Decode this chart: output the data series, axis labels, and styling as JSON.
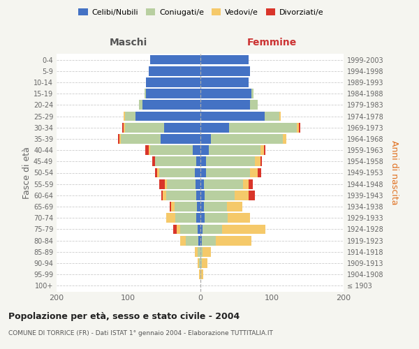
{
  "age_groups": [
    "100+",
    "95-99",
    "90-94",
    "85-89",
    "80-84",
    "75-79",
    "70-74",
    "65-69",
    "60-64",
    "55-59",
    "50-54",
    "45-49",
    "40-44",
    "35-39",
    "30-34",
    "25-29",
    "20-24",
    "15-19",
    "10-14",
    "5-9",
    "0-4"
  ],
  "birth_years": [
    "≤ 1903",
    "1904-1908",
    "1909-1913",
    "1914-1918",
    "1919-1923",
    "1924-1928",
    "1929-1933",
    "1934-1938",
    "1939-1943",
    "1944-1948",
    "1949-1953",
    "1954-1958",
    "1959-1963",
    "1964-1968",
    "1969-1973",
    "1974-1978",
    "1979-1983",
    "1984-1988",
    "1989-1993",
    "1994-1998",
    "1999-2003"
  ],
  "maschi": {
    "celibi": [
      0,
      0,
      0,
      0,
      2,
      3,
      5,
      4,
      5,
      6,
      7,
      5,
      10,
      55,
      50,
      90,
      80,
      75,
      75,
      72,
      70
    ],
    "coniugati": [
      0,
      0,
      1,
      3,
      18,
      25,
      30,
      32,
      42,
      40,
      50,
      58,
      60,
      55,
      55,
      15,
      5,
      2,
      0,
      0,
      0
    ],
    "vedovi": [
      0,
      1,
      2,
      4,
      8,
      5,
      12,
      4,
      5,
      3,
      3,
      0,
      2,
      2,
      2,
      2,
      0,
      0,
      0,
      0,
      0
    ],
    "divorziati": [
      0,
      0,
      0,
      0,
      0,
      4,
      0,
      2,
      2,
      8,
      3,
      4,
      4,
      2,
      2,
      0,
      0,
      0,
      0,
      0,
      0
    ]
  },
  "femmine": {
    "nubili": [
      0,
      0,
      0,
      0,
      2,
      3,
      6,
      5,
      6,
      5,
      8,
      8,
      12,
      15,
      40,
      90,
      70,
      72,
      68,
      70,
      68
    ],
    "coniugate": [
      0,
      1,
      2,
      3,
      20,
      28,
      32,
      32,
      42,
      55,
      62,
      68,
      72,
      100,
      95,
      20,
      10,
      2,
      0,
      0,
      0
    ],
    "vedove": [
      0,
      3,
      8,
      12,
      50,
      60,
      32,
      22,
      20,
      8,
      10,
      8,
      5,
      5,
      3,
      2,
      0,
      0,
      0,
      0,
      0
    ],
    "divorziate": [
      0,
      0,
      0,
      0,
      0,
      0,
      0,
      0,
      8,
      5,
      5,
      2,
      2,
      0,
      2,
      0,
      0,
      0,
      0,
      0,
      0
    ]
  },
  "colors": {
    "celibi": "#4472c4",
    "coniugati": "#b8cfa0",
    "vedovi": "#f5c96a",
    "divorziati": "#d9352a"
  },
  "xlim": 200,
  "title": "Popolazione per età, sesso e stato civile - 2004",
  "subtitle": "COMUNE DI TORRICE (FR) - Dati ISTAT 1° gennaio 2004 - Elaborazione TUTTITALIA.IT",
  "ylabel_left": "Fasce di età",
  "ylabel_right": "Anni di nascita",
  "xlabel_left": "Maschi",
  "xlabel_right": "Femmine",
  "legend_labels": [
    "Celibi/Nubili",
    "Coniugati/e",
    "Vedovi/e",
    "Divorziati/e"
  ],
  "bg_color": "#f5f5f0",
  "bar_bg_color": "#ffffff"
}
